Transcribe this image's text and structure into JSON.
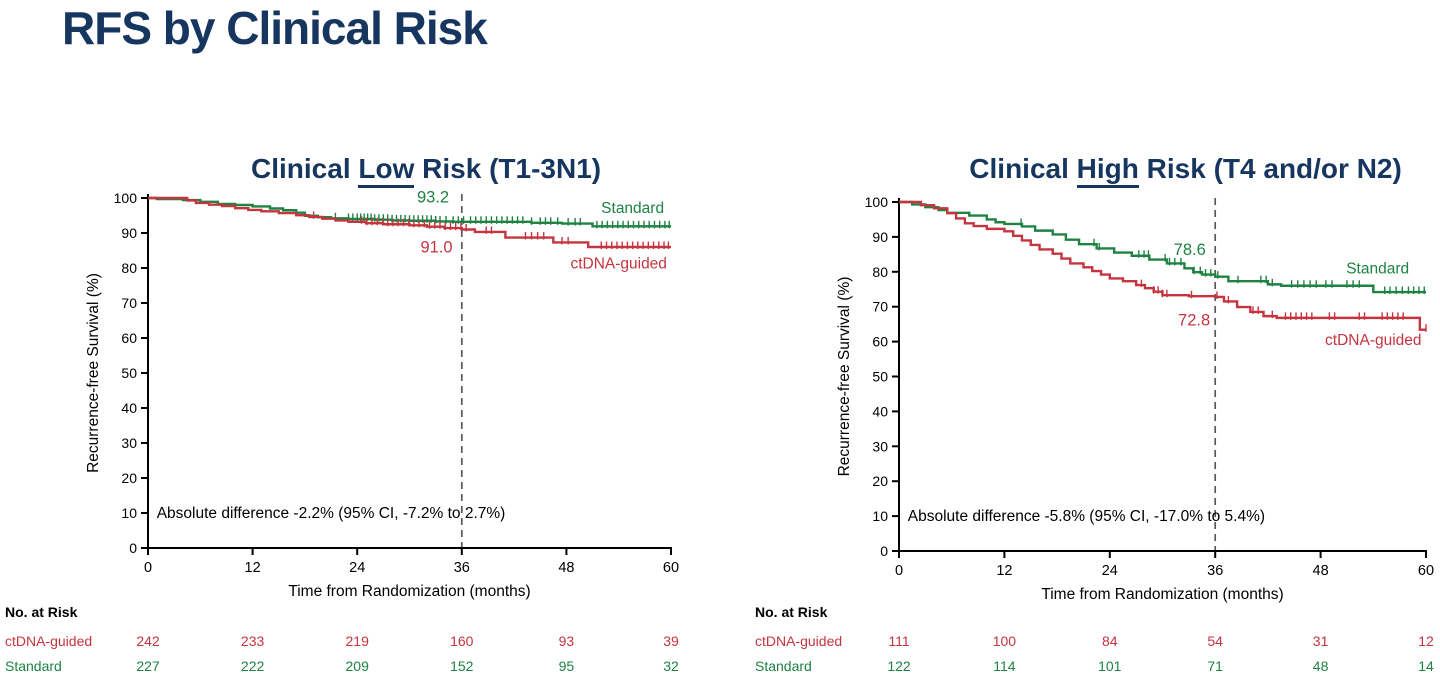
{
  "page": {
    "title": "RFS by Clinical Risk"
  },
  "colors": {
    "navy": "#16365f",
    "green": "#1e8243",
    "red": "#c5343f",
    "black": "#000000",
    "dashed_line": "#595959",
    "background": "#ffffff"
  },
  "chart_data": [
    {
      "type": "line",
      "subtype": "kaplan-meier",
      "title": "Clinical Low Risk (T1-3N1)",
      "title_parts": {
        "pre": "Clinical ",
        "underline": "Low",
        "post": " Risk (T1-3N1)"
      },
      "xlabel": "Time from Randomization (months)",
      "ylabel": "Recurrence-free Survival (%)",
      "xlim": [
        0,
        60
      ],
      "ylim": [
        0,
        100
      ],
      "xticks": [
        0,
        12,
        24,
        36,
        48,
        60
      ],
      "yticks": [
        0,
        10,
        20,
        30,
        40,
        50,
        60,
        70,
        80,
        90,
        100
      ],
      "landmark_line_x": 36,
      "annotation": "Absolute difference -2.2% (95% CI, -7.2% to 2.7%)",
      "legend_position": "on-curve-right",
      "grid": false,
      "series": [
        {
          "name": "Standard",
          "color": "#1e8243",
          "value_at_36": "93.2",
          "value_label_pos": [
            32.7,
            100.2
          ],
          "name_label_pos": [
            55.6,
            97.2
          ],
          "steps": [
            [
              0,
              100
            ],
            [
              1,
              99.7
            ],
            [
              4,
              99.4
            ],
            [
              6,
              98.9
            ],
            [
              8,
              98.3
            ],
            [
              10,
              98
            ],
            [
              12,
              97.6
            ],
            [
              14,
              97
            ],
            [
              15.5,
              96.5
            ],
            [
              17,
              95.8
            ],
            [
              18,
              94.9
            ],
            [
              19.5,
              94.5
            ],
            [
              21,
              94.2
            ],
            [
              23,
              94
            ],
            [
              26,
              93.8
            ],
            [
              28,
              93.6
            ],
            [
              30,
              93.5
            ],
            [
              33,
              93.3
            ],
            [
              35,
              93.2
            ],
            [
              44,
              92.9
            ],
            [
              47.5,
              92.7
            ],
            [
              51,
              91.9
            ],
            [
              60,
              91.9
            ]
          ],
          "censor_times": [
            21.5,
            23,
            23.5,
            24,
            24.4,
            24.8,
            25.2,
            25.6,
            26,
            26.5,
            27,
            27.5,
            28,
            28.5,
            29,
            29.5,
            30,
            30.5,
            31,
            31.5,
            32,
            32.5,
            33,
            33.5,
            34.2,
            35,
            35.6,
            36.2,
            37,
            37.6,
            38.2,
            38.8,
            39.4,
            40,
            40.6,
            41.2,
            41.8,
            42.4,
            43,
            44,
            45,
            45.6,
            46.2,
            47,
            48.2,
            49,
            49.6,
            51.5,
            52.1,
            52.7,
            53.3,
            53.9,
            54.5,
            55.1,
            55.7,
            56.3,
            56.9,
            57.5,
            58.1,
            58.7,
            59.3,
            59.8
          ]
        },
        {
          "name": "ctDNA-guided",
          "color": "#c5343f",
          "value_at_36": "91.0",
          "value_label_pos": [
            33.1,
            85.8
          ],
          "name_label_pos": [
            54,
            81.3
          ],
          "steps": [
            [
              0,
              100
            ],
            [
              4.5,
              99.3
            ],
            [
              5.5,
              98.6
            ],
            [
              7,
              98.1
            ],
            [
              8.5,
              97.7
            ],
            [
              10,
              97.1
            ],
            [
              11.5,
              96.6
            ],
            [
              13,
              96.2
            ],
            [
              15,
              95.7
            ],
            [
              17,
              95.1
            ],
            [
              18.5,
              94.6
            ],
            [
              20,
              94.1
            ],
            [
              21.5,
              93.6
            ],
            [
              23,
              93.2
            ],
            [
              25,
              92.8
            ],
            [
              27,
              92.5
            ],
            [
              30,
              92.2
            ],
            [
              32,
              91.8
            ],
            [
              34,
              91.4
            ],
            [
              36,
              91
            ],
            [
              37.5,
              90.3
            ],
            [
              41,
              88.7
            ],
            [
              46.5,
              87.3
            ],
            [
              50.5,
              86
            ],
            [
              60,
              86
            ]
          ],
          "censor_times": [
            19,
            24.5,
            25.1,
            25.7,
            26.3,
            26.9,
            27.5,
            28.1,
            28.7,
            29.3,
            29.9,
            30.5,
            31.1,
            31.7,
            32.3,
            32.9,
            33.5,
            34.1,
            34.7,
            35.3,
            35.9,
            36.5,
            38.8,
            39.4,
            43.3,
            44,
            44.7,
            45.4,
            47.5,
            48.2,
            52,
            52.6,
            53.2,
            53.8,
            54.4,
            55,
            55.6,
            56.2,
            56.8,
            57.4,
            58,
            58.6,
            59.2,
            59.7
          ]
        }
      ],
      "no_at_risk": {
        "header": "No. at Risk",
        "rows": [
          {
            "label": "ctDNA-guided",
            "color": "#c5343f",
            "counts": [
              "242",
              "233",
              "219",
              "160",
              "93",
              "39"
            ]
          },
          {
            "label": "Standard",
            "color": "#1e8243",
            "counts": [
              "227",
              "222",
              "209",
              "152",
              "95",
              "32"
            ]
          }
        ]
      }
    },
    {
      "type": "line",
      "subtype": "kaplan-meier",
      "title": "Clinical High Risk (T4 and/or N2)",
      "title_parts": {
        "pre": "Clinical ",
        "underline": "High",
        "post": " Risk (T4 and/or N2)"
      },
      "xlabel": "Time from Randomization (months)",
      "ylabel": "Recurrence-free Survival (%)",
      "xlim": [
        0,
        60
      ],
      "ylim": [
        0,
        100
      ],
      "xticks": [
        0,
        12,
        24,
        36,
        48,
        60
      ],
      "yticks": [
        0,
        10,
        20,
        30,
        40,
        50,
        60,
        70,
        80,
        90,
        100
      ],
      "landmark_line_x": 36,
      "annotation": "Absolute difference -5.8% (95% CI, -17.0% to 5.4%)",
      "legend_position": "on-curve-right",
      "grid": false,
      "series": [
        {
          "name": "Standard",
          "color": "#1e8243",
          "value_at_36": "78.6",
          "value_label_pos": [
            33.1,
            86.3
          ],
          "name_label_pos": [
            54.5,
            81
          ],
          "steps": [
            [
              0,
              100
            ],
            [
              1.5,
              99.3
            ],
            [
              3,
              98.5
            ],
            [
              4.5,
              97.7
            ],
            [
              5.5,
              96.9
            ],
            [
              8,
              96.1
            ],
            [
              10,
              95
            ],
            [
              11,
              94.2
            ],
            [
              12,
              93.7
            ],
            [
              14,
              93
            ],
            [
              15.5,
              91.8
            ],
            [
              17.5,
              90.7
            ],
            [
              19,
              89.2
            ],
            [
              20.5,
              87.9
            ],
            [
              22.5,
              86.7
            ],
            [
              24.5,
              85.5
            ],
            [
              26.5,
              84.6
            ],
            [
              28.5,
              83.5
            ],
            [
              30.5,
              82.4
            ],
            [
              32.5,
              81
            ],
            [
              33.5,
              79.9
            ],
            [
              34.5,
              79.2
            ],
            [
              36,
              78.6
            ],
            [
              37.5,
              77.3
            ],
            [
              42,
              76.4
            ],
            [
              43.5,
              76
            ],
            [
              54,
              74.2
            ],
            [
              60,
              74.2
            ]
          ],
          "censor_times": [
            13.9,
            22.2,
            22.8,
            27.3,
            27.9,
            28.4,
            30.3,
            30.8,
            31.4,
            32.1,
            33.6,
            34.3,
            34.9,
            35.5,
            36.3,
            38.6,
            41.2,
            41.8,
            42.5,
            44.7,
            45.4,
            46.1,
            46.8,
            47.5,
            48.6,
            49.3,
            51,
            51.7,
            52.4,
            55.3,
            55.9,
            56.6,
            57.3,
            58,
            58.6,
            59.2,
            59.8
          ]
        },
        {
          "name": "ctDNA-guided",
          "color": "#c5343f",
          "value_at_36": "72.8",
          "value_label_pos": [
            33.6,
            66
          ],
          "name_label_pos": [
            54,
            60.5
          ],
          "steps": [
            [
              0,
              100
            ],
            [
              2.5,
              99.1
            ],
            [
              4,
              98.2
            ],
            [
              5.5,
              96.8
            ],
            [
              6.5,
              95.3
            ],
            [
              7.5,
              93.9
            ],
            [
              8.5,
              93.1
            ],
            [
              10,
              92.3
            ],
            [
              12,
              91.6
            ],
            [
              13,
              90.3
            ],
            [
              14,
              89
            ],
            [
              15,
              87.7
            ],
            [
              16,
              86.4
            ],
            [
              17.5,
              85.2
            ],
            [
              18.5,
              83.8
            ],
            [
              19.5,
              82.4
            ],
            [
              21,
              81.3
            ],
            [
              22,
              80.2
            ],
            [
              23,
              79.2
            ],
            [
              24,
              78.1
            ],
            [
              25.5,
              77.3
            ],
            [
              27,
              76.2
            ],
            [
              28,
              75.3
            ],
            [
              29,
              74.3
            ],
            [
              30,
              73.3
            ],
            [
              33,
              73
            ],
            [
              36,
              72.8
            ],
            [
              37,
              71.5
            ],
            [
              38.5,
              69.9
            ],
            [
              40,
              68.5
            ],
            [
              41.5,
              67.3
            ],
            [
              43,
              66.8
            ],
            [
              59,
              66.8
            ],
            [
              59.3,
              63.4
            ],
            [
              60,
              63.4
            ]
          ],
          "censor_times": [
            27.6,
            29,
            29.5,
            30,
            30.5,
            33.3,
            36.2,
            37.5,
            40.3,
            40.9,
            42.5,
            44,
            44.6,
            45.2,
            45.8,
            46.4,
            47,
            49,
            49.6,
            52.4,
            53,
            55,
            55.6,
            56.2,
            56.8,
            57.4,
            60
          ]
        }
      ],
      "no_at_risk": {
        "header": "No. at Risk",
        "rows": [
          {
            "label": "ctDNA-guided",
            "color": "#c5343f",
            "counts": [
              "111",
              "100",
              "84",
              "54",
              "31",
              "12"
            ]
          },
          {
            "label": "Standard",
            "color": "#1e8243",
            "counts": [
              "122",
              "114",
              "101",
              "71",
              "48",
              "14"
            ]
          }
        ]
      }
    }
  ]
}
